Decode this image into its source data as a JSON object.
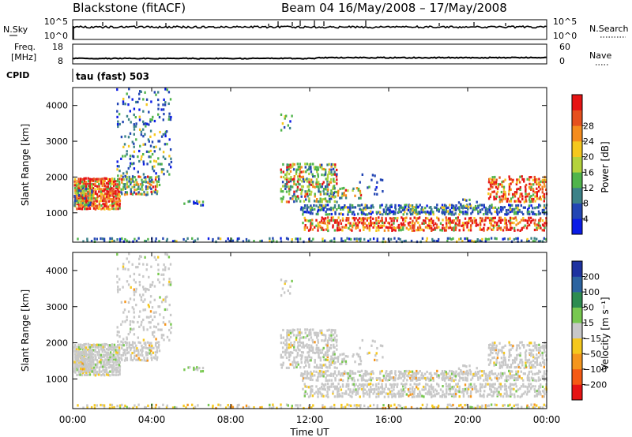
{
  "header": {
    "station": "Blackstone (fitACF)",
    "beam_range": "Beam 04 16/May/2008 – 17/May/2008"
  },
  "status": {
    "nsky_label": "N.Sky",
    "nsearch_label": "N.Search",
    "freq_label_1": "Freq.",
    "freq_label_2": "[MHz]",
    "nave_label": "Nave",
    "cpid_label": "CPID",
    "cpid_value": "tau (fast) 503",
    "nsky_ticks": [
      "10^5",
      "10^0"
    ],
    "nsearch_ticks": [
      "10^5",
      "10^0"
    ],
    "freq_ticks": [
      "18",
      "8"
    ],
    "nave_ticks": [
      "60",
      "0"
    ]
  },
  "chart_data": [
    {
      "type": "heatmap",
      "title": "Power",
      "ylabel": "Slant Range [km]",
      "xlabel": "",
      "x_range_hours": [
        0,
        24
      ],
      "ylim": [
        180,
        4500
      ],
      "yticks": [
        "1000",
        "2000",
        "3000",
        "4000"
      ],
      "colorbar": {
        "label": "Power [dB]",
        "ticks": [
          "4",
          "8",
          "12",
          "16",
          "20",
          "24",
          "28"
        ],
        "colors": [
          "#0a1be6",
          "#2346b4",
          "#3c8288",
          "#50b44b",
          "#b4d23c",
          "#f5c81e",
          "#f58c1e",
          "#e6501e",
          "#e61414"
        ]
      }
    },
    {
      "type": "heatmap",
      "title": "Velocity",
      "ylabel": "Slant Range [km]",
      "xlabel": "Time UT",
      "x_range_hours": [
        0,
        24
      ],
      "ylim": [
        180,
        4500
      ],
      "yticks": [
        "1000",
        "2000",
        "3000",
        "4000"
      ],
      "xticks": [
        "00:00",
        "04:00",
        "08:00",
        "12:00",
        "16:00",
        "20:00",
        "00:00"
      ],
      "colorbar": {
        "label": "Velocity [m s⁻¹]",
        "ticks": [
          "200",
          "100",
          "50",
          "15",
          "−15",
          "−50",
          "−100",
          "−200"
        ],
        "colors": [
          "#1e32a0",
          "#2d64a0",
          "#2d8c50",
          "#78c850",
          "#c8c8c8",
          "#f5c81e",
          "#f5961e",
          "#f55a14",
          "#e61414"
        ]
      }
    }
  ],
  "scatter_regions": [
    {
      "t": [
        0.05,
        2.4
      ],
      "r": [
        1100,
        2000
      ],
      "dens": 0.9,
      "p": "hot",
      "v": "mixed"
    },
    {
      "t": [
        0.05,
        1.0
      ],
      "r": [
        1200,
        1800
      ],
      "dens": 0.85,
      "p": "mid",
      "v": "gray"
    },
    {
      "t": [
        2.4,
        4.4
      ],
      "r": [
        1500,
        2050
      ],
      "dens": 0.7,
      "p": "mid",
      "v": "gray"
    },
    {
      "t": [
        2.2,
        5.0
      ],
      "r": [
        2000,
        4500
      ],
      "dens": 0.18,
      "p": "cool",
      "v": "gray"
    },
    {
      "t": [
        5.6,
        6.6
      ],
      "r": [
        1200,
        1350
      ],
      "dens": 0.35,
      "p": "cool",
      "v": "green"
    },
    {
      "t": [
        0.2,
        24.0
      ],
      "r": [
        190,
        320
      ],
      "dens": 0.35,
      "p": "cool",
      "v": "orange"
    },
    {
      "t": [
        10.5,
        13.4
      ],
      "r": [
        1300,
        2400
      ],
      "dens": 0.55,
      "p": "mid",
      "v": "gray"
    },
    {
      "t": [
        11.5,
        24.0
      ],
      "r": [
        950,
        1250
      ],
      "dens": 0.55,
      "p": "cool",
      "v": "gray"
    },
    {
      "t": [
        11.6,
        24.0
      ],
      "r": [
        500,
        900
      ],
      "dens": 0.6,
      "p": "hot",
      "v": "gray"
    },
    {
      "t": [
        13.0,
        14.6
      ],
      "r": [
        1400,
        1800
      ],
      "dens": 0.3,
      "p": "mid",
      "v": "gray"
    },
    {
      "t": [
        16.0,
        19.5
      ],
      "r": [
        1000,
        1200
      ],
      "dens": 0.3,
      "p": "cool",
      "v": "gray"
    },
    {
      "t": [
        21.0,
        24.0
      ],
      "r": [
        1300,
        2050
      ],
      "dens": 0.55,
      "p": "hot",
      "v": "gray"
    },
    {
      "t": [
        10.5,
        11.1
      ],
      "r": [
        3300,
        3800
      ],
      "dens": 0.2,
      "p": "cool",
      "v": "gray"
    },
    {
      "t": [
        14.5,
        15.7
      ],
      "r": [
        1500,
        2100
      ],
      "dens": 0.12,
      "p": "cool",
      "v": "gray"
    },
    {
      "t": [
        19.5,
        20.5
      ],
      "r": [
        1100,
        1400
      ],
      "dens": 0.25,
      "p": "cool",
      "v": "gray"
    }
  ]
}
